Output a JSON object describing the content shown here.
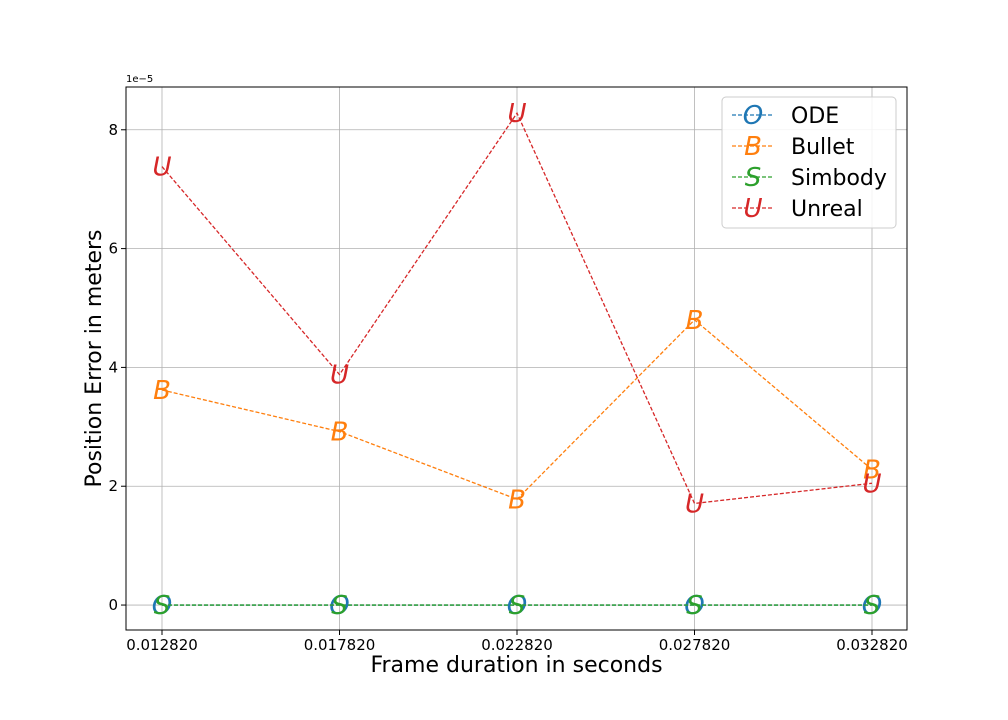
{
  "chart_data": {
    "type": "line",
    "xlabel": "Frame duration in seconds",
    "ylabel": "Position Error in meters",
    "y_offset_label": "1e−5",
    "y_scale": 1e-05,
    "categories": [
      "0.012820",
      "0.017820",
      "0.022820",
      "0.027820",
      "0.032820"
    ],
    "y_ticks": [
      0,
      2,
      4,
      6,
      8
    ],
    "ylim": [
      -0.42,
      8.72
    ],
    "grid": true,
    "legend_position": "top-right",
    "series": [
      {
        "name": "ODE",
        "marker": "O",
        "color": "#1f77b4",
        "values": [
          0,
          0,
          0,
          0,
          0
        ]
      },
      {
        "name": "Bullet",
        "marker": "B",
        "color": "#ff7f0e",
        "values": [
          3.62,
          2.92,
          1.78,
          4.8,
          2.28
        ]
      },
      {
        "name": "Simbody",
        "marker": "S",
        "color": "#2ca02c",
        "values": [
          0,
          0,
          0,
          0,
          0
        ]
      },
      {
        "name": "Unreal",
        "marker": "U",
        "color": "#d62728",
        "values": [
          7.38,
          3.88,
          8.28,
          1.71,
          2.05
        ]
      }
    ]
  }
}
